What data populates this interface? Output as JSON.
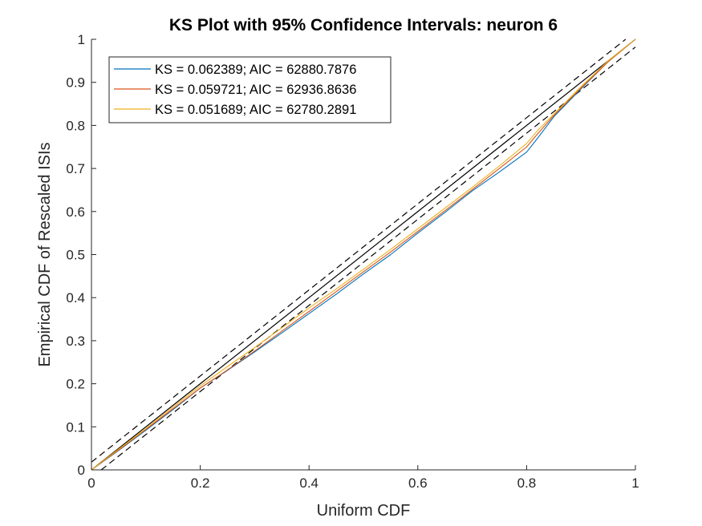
{
  "chart_data": {
    "type": "line",
    "title": "KS Plot with 95% Confidence Intervals: neuron 6",
    "xlabel": "Uniform CDF",
    "ylabel": "Empirical CDF of Rescaled ISIs",
    "xlim": [
      0,
      1
    ],
    "ylim": [
      0,
      1
    ],
    "xticks": [
      0,
      0.2,
      0.4,
      0.6,
      0.8,
      1
    ],
    "xtick_labels": [
      "0",
      "0.2",
      "0.4",
      "0.6",
      "0.8",
      "1"
    ],
    "yticks": [
      0,
      0.1,
      0.2,
      0.3,
      0.4,
      0.5,
      0.6,
      0.7,
      0.8,
      0.9,
      1
    ],
    "ytick_labels": [
      "0",
      "0.1",
      "0.2",
      "0.3",
      "0.4",
      "0.5",
      "0.6",
      "0.7",
      "0.8",
      "0.9",
      "1"
    ],
    "grid": false,
    "legend_position": "top-left",
    "reference": {
      "diagonal": {
        "x": [
          0,
          1
        ],
        "y": [
          0,
          1
        ],
        "color": "#000000",
        "style": "solid"
      },
      "upper_bound": {
        "x": [
          0,
          0.982
        ],
        "y": [
          0.018,
          1
        ],
        "color": "#000000",
        "style": "dashed"
      },
      "lower_bound": {
        "x": [
          0.018,
          1
        ],
        "y": [
          0,
          0.982
        ],
        "color": "#000000",
        "style": "dashed"
      }
    },
    "series": [
      {
        "name": "KS = 0.062389; AIC = 62880.7876",
        "color": "#0072BD",
        "x": [
          0,
          0.05,
          0.1,
          0.15,
          0.2,
          0.25,
          0.3,
          0.35,
          0.4,
          0.45,
          0.5,
          0.55,
          0.6,
          0.65,
          0.7,
          0.75,
          0.8,
          0.82,
          0.85,
          0.9,
          0.95,
          1.0
        ],
        "y": [
          0,
          0.045,
          0.092,
          0.14,
          0.19,
          0.231,
          0.274,
          0.318,
          0.363,
          0.408,
          0.455,
          0.5,
          0.55,
          0.598,
          0.648,
          0.692,
          0.738,
          0.77,
          0.82,
          0.885,
          0.948,
          1.0
        ]
      },
      {
        "name": "KS = 0.059721; AIC = 62936.8636",
        "color": "#D95319",
        "x": [
          0,
          0.05,
          0.1,
          0.15,
          0.2,
          0.25,
          0.3,
          0.35,
          0.4,
          0.45,
          0.5,
          0.55,
          0.6,
          0.65,
          0.7,
          0.75,
          0.8,
          0.82,
          0.85,
          0.9,
          0.95,
          1.0
        ],
        "y": [
          0,
          0.046,
          0.094,
          0.142,
          0.19,
          0.232,
          0.276,
          0.322,
          0.368,
          0.414,
          0.46,
          0.506,
          0.554,
          0.602,
          0.651,
          0.7,
          0.75,
          0.78,
          0.823,
          0.887,
          0.948,
          1.0
        ]
      },
      {
        "name": "KS = 0.051689; AIC = 62780.2891",
        "color": "#EDB120",
        "x": [
          0,
          0.05,
          0.1,
          0.15,
          0.2,
          0.25,
          0.3,
          0.35,
          0.4,
          0.45,
          0.5,
          0.55,
          0.6,
          0.65,
          0.7,
          0.75,
          0.8,
          0.82,
          0.85,
          0.9,
          0.95,
          1.0
        ],
        "y": [
          0,
          0.048,
          0.096,
          0.146,
          0.195,
          0.24,
          0.284,
          0.33,
          0.376,
          0.42,
          0.466,
          0.512,
          0.56,
          0.608,
          0.656,
          0.706,
          0.758,
          0.788,
          0.826,
          0.89,
          0.95,
          1.0
        ]
      }
    ]
  }
}
